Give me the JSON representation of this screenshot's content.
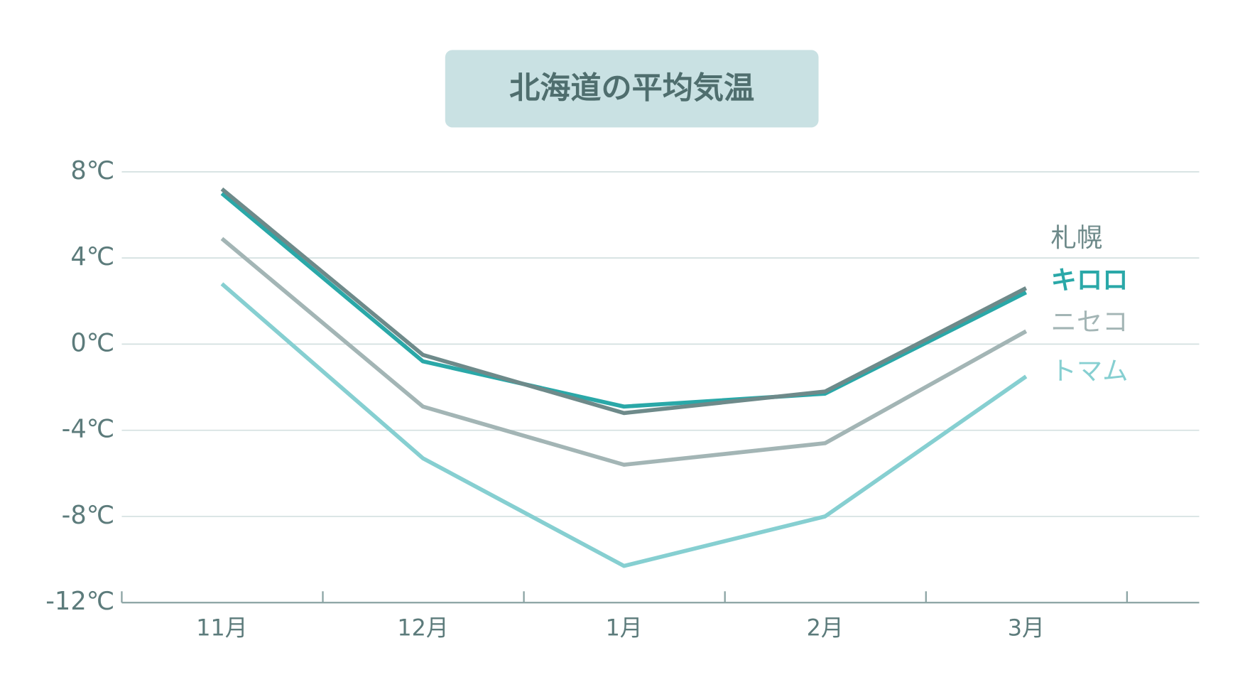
{
  "chart_data": {
    "type": "line",
    "title": "北海道の平均気温",
    "categories": [
      "11月",
      "12月",
      "1月",
      "2月",
      "3月"
    ],
    "series": [
      {
        "name": "札幌",
        "color": "#6e8a8a",
        "values": [
          7.2,
          -0.5,
          -3.2,
          -2.2,
          2.6
        ]
      },
      {
        "name": "キロロ",
        "color": "#2aa8a8",
        "values": [
          7.0,
          -0.8,
          -2.9,
          -2.3,
          2.4
        ]
      },
      {
        "name": "ニセコ",
        "color": "#a3b5b5",
        "values": [
          4.9,
          -2.9,
          -5.6,
          -4.6,
          0.6
        ]
      },
      {
        "name": "トマム",
        "color": "#86cfd1",
        "values": [
          2.8,
          -5.3,
          -10.3,
          -8.0,
          -1.5
        ]
      }
    ],
    "ylim": [
      -12,
      8
    ],
    "yticks": [
      {
        "value": -12,
        "label": "-12℃"
      },
      {
        "value": -8,
        "label": "-8℃"
      },
      {
        "value": -4,
        "label": "-4℃"
      },
      {
        "value": 0,
        "label": "0℃"
      },
      {
        "value": 4,
        "label": "4℃"
      },
      {
        "value": 8,
        "label": "8℃"
      }
    ],
    "grid": true
  }
}
